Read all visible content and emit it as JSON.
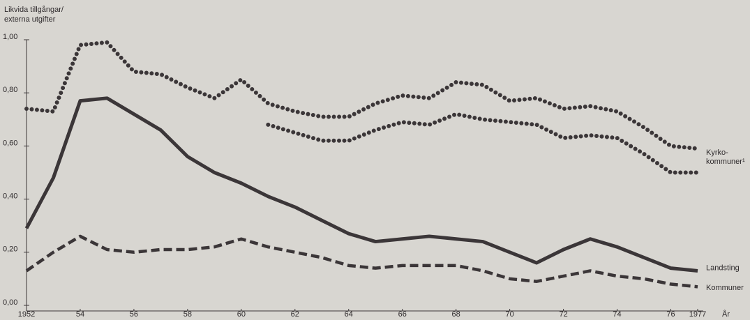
{
  "chart_data": {
    "type": "line",
    "y_axis_label": [
      "Likvida tillgångar/",
      "externa utgifter"
    ],
    "x_axis_label": "År",
    "x": [
      1952,
      1953,
      1954,
      1955,
      1956,
      1957,
      1958,
      1959,
      1960,
      1961,
      1962,
      1963,
      1964,
      1965,
      1966,
      1967,
      1968,
      1969,
      1970,
      1971,
      1972,
      1973,
      1974,
      1975,
      1976,
      1977
    ],
    "xlim": [
      1952,
      1977
    ],
    "xticks": [
      1952,
      {
        "value": 1954,
        "label": "54"
      },
      {
        "value": 1956,
        "label": "56"
      },
      {
        "value": 1958,
        "label": "58"
      },
      {
        "value": 1960,
        "label": "60"
      },
      {
        "value": 1962,
        "label": "62"
      },
      {
        "value": 1964,
        "label": "64"
      },
      {
        "value": 1966,
        "label": "66"
      },
      {
        "value": 1968,
        "label": "68"
      },
      {
        "value": 1970,
        "label": "70"
      },
      {
        "value": 1972,
        "label": "72"
      },
      {
        "value": 1974,
        "label": "74"
      },
      {
        "value": 1976,
        "label": "76"
      },
      1977
    ],
    "ylim": [
      0,
      1
    ],
    "yticks": [
      {
        "value": 0,
        "label": "0,00"
      },
      {
        "value": 0.2,
        "label": "0,20"
      },
      {
        "value": 0.4,
        "label": "0,40"
      },
      {
        "value": 0.6,
        "label": "0,60"
      },
      {
        "value": 0.8,
        "label": "0,80"
      },
      {
        "value": 1,
        "label": "1,00"
      }
    ],
    "series": [
      {
        "name": [
          "Kyrko-",
          "kommuner¹"
        ],
        "style": "dotted",
        "color": "#3b3638",
        "values": [
          0.74,
          0.73,
          0.98,
          0.99,
          0.88,
          0.87,
          0.82,
          0.78,
          0.85,
          0.76,
          0.73,
          0.71,
          0.71,
          0.76,
          0.79,
          0.78,
          0.84,
          0.83,
          0.77,
          0.78,
          0.74,
          0.75,
          0.73,
          0.67,
          0.6,
          0.59
        ]
      },
      {
        "style": "dotted",
        "color": "#3b3638",
        "values": [
          null,
          null,
          null,
          null,
          null,
          null,
          null,
          null,
          null,
          0.68,
          0.65,
          0.62,
          0.62,
          0.66,
          0.69,
          0.68,
          0.72,
          0.7,
          0.69,
          0.68,
          0.63,
          0.64,
          0.63,
          0.57,
          0.5,
          0.5
        ]
      },
      {
        "name": "Landsting",
        "style": "solid",
        "color": "#3b3638",
        "values": [
          0.29,
          0.48,
          0.77,
          0.78,
          0.72,
          0.66,
          0.56,
          0.5,
          0.46,
          0.41,
          0.37,
          0.32,
          0.27,
          0.24,
          0.25,
          0.26,
          0.25,
          0.24,
          0.2,
          0.16,
          0.21,
          0.25,
          0.22,
          0.18,
          0.14,
          0.13
        ]
      },
      {
        "name": "Kommuner",
        "style": "dashed",
        "color": "#3b3638",
        "values": [
          0.13,
          0.2,
          0.26,
          0.21,
          0.2,
          0.21,
          0.21,
          0.22,
          0.25,
          0.22,
          0.2,
          0.18,
          0.15,
          0.14,
          0.15,
          0.15,
          0.15,
          0.13,
          0.1,
          0.09,
          0.11,
          0.13,
          0.11,
          0.1,
          0.08,
          0.07
        ]
      }
    ]
  }
}
